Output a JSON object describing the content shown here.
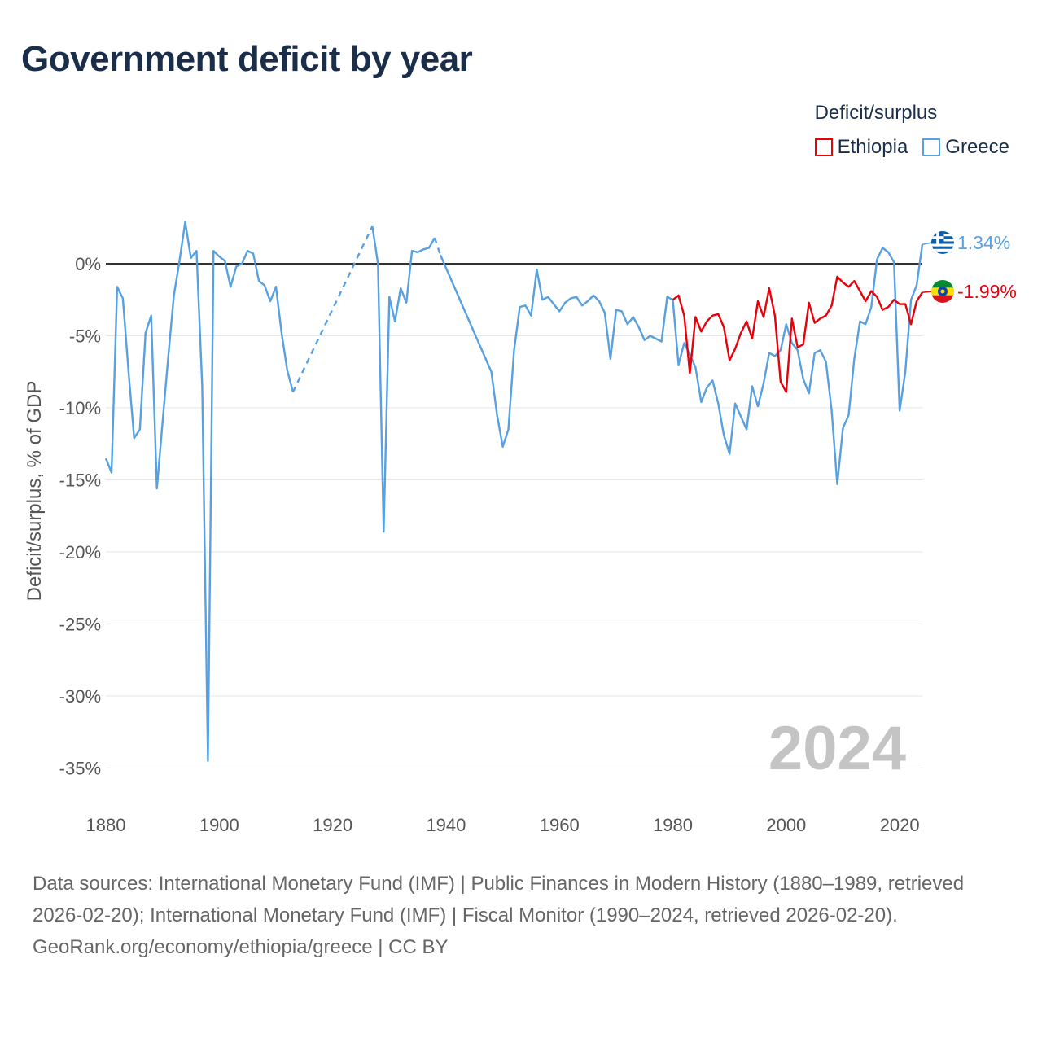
{
  "title": "Government deficit by year",
  "legend": {
    "title": "Deficit/surplus",
    "items": [
      {
        "label": "Ethiopia",
        "color": "#e8000b"
      },
      {
        "label": "Greece",
        "color": "#58a0e0"
      }
    ]
  },
  "year_watermark": "2024",
  "sources": {
    "text": "Data sources: International Monetary Fund (IMF) | Public Finances in Modern History (1880–1989, retrieved 2026-02-20); International Monetary Fund (IMF) | Fiscal Monitor (1990–2024, retrieved 2026-02-20).",
    "credit": "GeoRank.org/economy/ethiopia/greece | CC BY"
  },
  "chart_data": {
    "type": "line",
    "title": "Government deficit by year",
    "xlabel": "",
    "ylabel": "Deficit/surplus, % of GDP",
    "xlim": [
      1880,
      2024
    ],
    "ylim": [
      -35,
      2
    ],
    "x_ticks": [
      1880,
      1900,
      1920,
      1940,
      1960,
      1980,
      2000,
      2020
    ],
    "x_tick_labels": [
      "1880",
      "1900",
      "1920",
      "1940",
      "1960",
      "1980",
      "2000",
      "2020"
    ],
    "y_ticks": [
      0,
      -5,
      -10,
      -15,
      -20,
      -25,
      -30,
      -35
    ],
    "y_tick_labels": [
      "0%",
      "-5%",
      "-10%",
      "-15%",
      "-20%",
      "-25%",
      "-30%",
      "-35%"
    ],
    "zero_line": true,
    "legend_position": "top-right",
    "series": [
      {
        "name": "Ethiopia",
        "color": "#e8000b",
        "end_label": "-1.99%",
        "flag": "ethiopia",
        "points": [
          [
            1980,
            -2.5
          ],
          [
            1981,
            -2.2
          ],
          [
            1982,
            -3.6
          ],
          [
            1983,
            -7.6
          ],
          [
            1984,
            -3.7
          ],
          [
            1985,
            -4.7
          ],
          [
            1986,
            -4.0
          ],
          [
            1987,
            -3.6
          ],
          [
            1988,
            -3.5
          ],
          [
            1989,
            -4.4
          ],
          [
            1990,
            -6.7
          ],
          [
            1991,
            -5.9
          ],
          [
            1992,
            -4.8
          ],
          [
            1993,
            -4.0
          ],
          [
            1994,
            -5.2
          ],
          [
            1995,
            -2.6
          ],
          [
            1996,
            -3.7
          ],
          [
            1997,
            -1.7
          ],
          [
            1998,
            -3.6
          ],
          [
            1999,
            -8.2
          ],
          [
            2000,
            -8.9
          ],
          [
            2001,
            -3.8
          ],
          [
            2002,
            -5.8
          ],
          [
            2003,
            -5.6
          ],
          [
            2004,
            -2.7
          ],
          [
            2005,
            -4.1
          ],
          [
            2006,
            -3.8
          ],
          [
            2007,
            -3.6
          ],
          [
            2008,
            -2.9
          ],
          [
            2009,
            -0.9
          ],
          [
            2010,
            -1.3
          ],
          [
            2011,
            -1.6
          ],
          [
            2012,
            -1.2
          ],
          [
            2013,
            -1.9
          ],
          [
            2014,
            -2.6
          ],
          [
            2015,
            -1.9
          ],
          [
            2016,
            -2.3
          ],
          [
            2017,
            -3.2
          ],
          [
            2018,
            -3.0
          ],
          [
            2019,
            -2.5
          ],
          [
            2020,
            -2.8
          ],
          [
            2021,
            -2.8
          ],
          [
            2022,
            -4.2
          ],
          [
            2023,
            -2.6
          ],
          [
            2024,
            -1.99
          ]
        ]
      },
      {
        "name": "Greece",
        "color": "#58a0e0",
        "end_label": "1.34%",
        "flag": "greece",
        "dashed_gaps": [
          [
            1913,
            1927
          ],
          [
            1938,
            1948
          ]
        ],
        "points": [
          [
            1880,
            -13.5
          ],
          [
            1881,
            -14.5
          ],
          [
            1882,
            -1.6
          ],
          [
            1883,
            -2.4
          ],
          [
            1884,
            -7.5
          ],
          [
            1885,
            -12.1
          ],
          [
            1886,
            -11.5
          ],
          [
            1887,
            -4.8
          ],
          [
            1888,
            -3.6
          ],
          [
            1889,
            -15.6
          ],
          [
            1890,
            -11.0
          ],
          [
            1891,
            -6.5
          ],
          [
            1892,
            -2.2
          ],
          [
            1893,
            0.2
          ],
          [
            1894,
            2.9
          ],
          [
            1895,
            0.4
          ],
          [
            1896,
            0.9
          ],
          [
            1897,
            -8.5
          ],
          [
            1898,
            -34.5
          ],
          [
            1899,
            0.9
          ],
          [
            1900,
            0.5
          ],
          [
            1901,
            0.2
          ],
          [
            1902,
            -1.6
          ],
          [
            1903,
            -0.2
          ],
          [
            1904,
            0.0
          ],
          [
            1905,
            0.9
          ],
          [
            1906,
            0.7
          ],
          [
            1907,
            -1.2
          ],
          [
            1908,
            -1.5
          ],
          [
            1909,
            -2.6
          ],
          [
            1910,
            -1.6
          ],
          [
            1911,
            -4.8
          ],
          [
            1912,
            -7.4
          ],
          [
            1913,
            -8.9
          ],
          [
            1927,
            2.6
          ],
          [
            1928,
            0.0
          ],
          [
            1929,
            -18.6
          ],
          [
            1930,
            -2.3
          ],
          [
            1931,
            -4.0
          ],
          [
            1932,
            -1.7
          ],
          [
            1933,
            -2.7
          ],
          [
            1934,
            0.9
          ],
          [
            1935,
            0.8
          ],
          [
            1936,
            1.0
          ],
          [
            1937,
            1.1
          ],
          [
            1938,
            1.8
          ],
          [
            1939,
            0.6
          ],
          [
            1948,
            -7.5
          ],
          [
            1949,
            -10.5
          ],
          [
            1950,
            -12.7
          ],
          [
            1951,
            -11.5
          ],
          [
            1952,
            -6.0
          ],
          [
            1953,
            -3.0
          ],
          [
            1954,
            -2.9
          ],
          [
            1955,
            -3.6
          ],
          [
            1956,
            -0.4
          ],
          [
            1957,
            -2.5
          ],
          [
            1958,
            -2.3
          ],
          [
            1959,
            -2.8
          ],
          [
            1960,
            -3.3
          ],
          [
            1961,
            -2.7
          ],
          [
            1962,
            -2.4
          ],
          [
            1963,
            -2.3
          ],
          [
            1964,
            -2.9
          ],
          [
            1965,
            -2.6
          ],
          [
            1966,
            -2.2
          ],
          [
            1967,
            -2.6
          ],
          [
            1968,
            -3.4
          ],
          [
            1969,
            -6.6
          ],
          [
            1970,
            -3.2
          ],
          [
            1971,
            -3.3
          ],
          [
            1972,
            -4.2
          ],
          [
            1973,
            -3.7
          ],
          [
            1974,
            -4.4
          ],
          [
            1975,
            -5.3
          ],
          [
            1976,
            -5.0
          ],
          [
            1977,
            -5.2
          ],
          [
            1978,
            -5.4
          ],
          [
            1979,
            -2.3
          ],
          [
            1980,
            -2.5
          ],
          [
            1981,
            -7.0
          ],
          [
            1982,
            -5.5
          ],
          [
            1983,
            -6.3
          ],
          [
            1984,
            -7.2
          ],
          [
            1985,
            -9.6
          ],
          [
            1986,
            -8.6
          ],
          [
            1987,
            -8.1
          ],
          [
            1988,
            -9.7
          ],
          [
            1989,
            -11.9
          ],
          [
            1990,
            -13.2
          ],
          [
            1991,
            -9.7
          ],
          [
            1992,
            -10.6
          ],
          [
            1993,
            -11.5
          ],
          [
            1994,
            -8.5
          ],
          [
            1995,
            -9.9
          ],
          [
            1996,
            -8.3
          ],
          [
            1997,
            -6.2
          ],
          [
            1998,
            -6.4
          ],
          [
            1999,
            -6.0
          ],
          [
            2000,
            -4.2
          ],
          [
            2001,
            -5.5
          ],
          [
            2002,
            -6.0
          ],
          [
            2003,
            -8.0
          ],
          [
            2004,
            -9.0
          ],
          [
            2005,
            -6.2
          ],
          [
            2006,
            -6.0
          ],
          [
            2007,
            -6.8
          ],
          [
            2008,
            -10.2
          ],
          [
            2009,
            -15.3
          ],
          [
            2010,
            -11.4
          ],
          [
            2011,
            -10.5
          ],
          [
            2012,
            -6.6
          ],
          [
            2013,
            -4.0
          ],
          [
            2014,
            -4.2
          ],
          [
            2015,
            -3.0
          ],
          [
            2016,
            0.3
          ],
          [
            2017,
            1.1
          ],
          [
            2018,
            0.8
          ],
          [
            2019,
            0.1
          ],
          [
            2020,
            -10.2
          ],
          [
            2021,
            -7.5
          ],
          [
            2022,
            -2.5
          ],
          [
            2023,
            -1.5
          ],
          [
            2024,
            1.34
          ]
        ]
      }
    ]
  }
}
